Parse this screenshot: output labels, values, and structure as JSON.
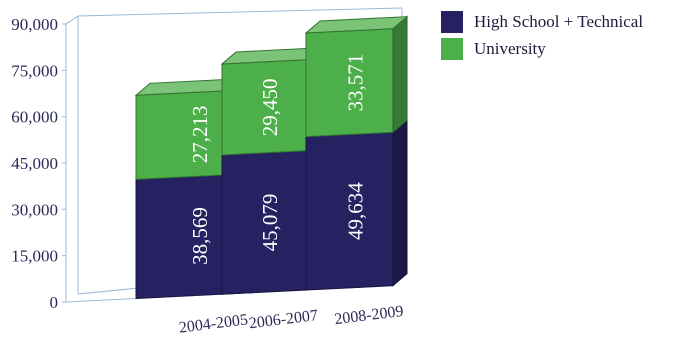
{
  "chart_data": {
    "type": "bar",
    "stacked": true,
    "three_d": true,
    "categories": [
      "2004-2005",
      "2006-2007",
      "2008-2009"
    ],
    "series": [
      {
        "name": "High School + Technical",
        "values": [
          38569,
          45079,
          49634
        ],
        "labels": [
          "38,569",
          "45,079",
          "49,634"
        ],
        "color": "#262262"
      },
      {
        "name": "University",
        "values": [
          27213,
          29450,
          33571
        ],
        "labels": [
          "27,213",
          "29,450",
          "33,571"
        ],
        "color": "#4daf4a"
      }
    ],
    "yticks": [
      "0",
      "15,000",
      "30,000",
      "45,000",
      "60,000",
      "75,000",
      "90,000"
    ],
    "ylim": [
      0,
      90000
    ],
    "legend_position": "top-right",
    "grid": false
  }
}
